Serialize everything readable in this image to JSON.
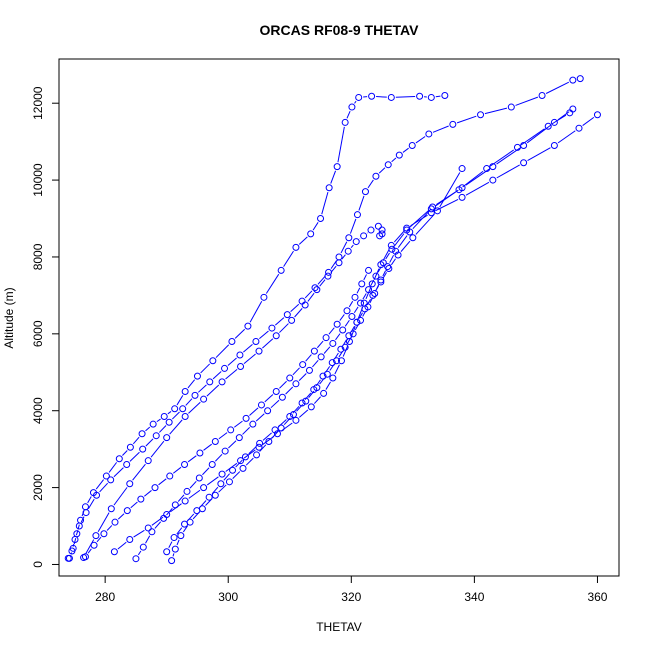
{
  "chart_data": {
    "type": "line",
    "title": "ORCAS RF08-9 THETAV",
    "xlabel": "THETAV",
    "ylabel": "Altitude (m)",
    "xlim": [
      272.5,
      363.5
    ],
    "ylim": [
      -300,
      13150
    ],
    "xticks": [
      280,
      300,
      320,
      340,
      360
    ],
    "yticks": [
      0,
      2000,
      4000,
      6000,
      8000,
      10000,
      12000
    ],
    "grid": false,
    "legend": "none",
    "marker": "open-circle",
    "color": "#0000ff",
    "series": [
      {
        "x": [
          274.2,
          274.8,
          275.4,
          276.0,
          276.8,
          278.1,
          280.2,
          282.3,
          284.1,
          286.0,
          287.8,
          289.6,
          291.3,
          293.0,
          295.0,
          297.5,
          300.6,
          303.2,
          305.8,
          308.6,
          311.0,
          313.4,
          315.0,
          316.4,
          317.7,
          319.0,
          320.1,
          321.2,
          323.3,
          326.5,
          331.1,
          333.0,
          335.2
        ],
        "y": [
          160,
          420,
          800,
          1150,
          1500,
          1870,
          2300,
          2750,
          3050,
          3400,
          3650,
          3850,
          4050,
          4500,
          4900,
          5300,
          5800,
          6200,
          6950,
          7650,
          8250,
          8600,
          9000,
          9800,
          10350,
          11500,
          11900,
          12150,
          12180,
          12150,
          12180,
          12150,
          12200
        ]
      },
      {
        "x": [
          274.0,
          274.6,
          275.1,
          275.8,
          276.9,
          278.6,
          280.9,
          283.5,
          286.1,
          288.3,
          290.4,
          292.6,
          294.6,
          297.0,
          299.4,
          301.9,
          304.5,
          307.1,
          309.6,
          312.0,
          314.1,
          316.3,
          318.0,
          319.6,
          321.0,
          322.3,
          324.0,
          326.0,
          327.8,
          329.9,
          332.6,
          336.5,
          341.0,
          346.0,
          351.0,
          356.0,
          357.2
        ],
        "y": [
          160,
          350,
          650,
          1000,
          1350,
          1800,
          2200,
          2600,
          3000,
          3350,
          3700,
          4050,
          4400,
          4750,
          5100,
          5450,
          5800,
          6150,
          6500,
          6850,
          7200,
          7600,
          8000,
          8500,
          9100,
          9700,
          10100,
          10400,
          10650,
          10900,
          11200,
          11450,
          11700,
          11900,
          12200,
          12600,
          12640
        ]
      },
      {
        "x": [
          285.0,
          286.2,
          287.6,
          289.5,
          291.4,
          293.3,
          295.3,
          297.4,
          299.5,
          301.8,
          304.0,
          306.4,
          308.8,
          311.0,
          313.2,
          315.1,
          317.0,
          318.6,
          320.1,
          321.5,
          322.8,
          324.0,
          325.2,
          326.6,
          329.0,
          333.2,
          338.0,
          343.0,
          348.0,
          353.0,
          356.0
        ],
        "y": [
          150,
          450,
          850,
          1200,
          1550,
          1900,
          2250,
          2600,
          2950,
          3300,
          3650,
          4000,
          4350,
          4700,
          5050,
          5400,
          5750,
          6100,
          6450,
          6800,
          7150,
          7500,
          7850,
          8200,
          8700,
          9300,
          9800,
          10350,
          10900,
          11500,
          11850
        ]
      },
      {
        "x": [
          290.8,
          291.4,
          292.3,
          293.8,
          295.8,
          297.9,
          300.2,
          302.4,
          304.6,
          306.6,
          308.6,
          310.6,
          312.6,
          314.4,
          316.1,
          317.6,
          319.0,
          320.3,
          321.5,
          322.7,
          323.8,
          324.8,
          325.9,
          327.2,
          329.5,
          333.0,
          337.5,
          342.0,
          347.0,
          352.0,
          355.5
        ],
        "y": [
          100,
          400,
          750,
          1100,
          1450,
          1800,
          2150,
          2500,
          2850,
          3200,
          3550,
          3900,
          4250,
          4600,
          4950,
          5300,
          5650,
          6000,
          6350,
          6700,
          7050,
          7400,
          7750,
          8150,
          8650,
          9250,
          9750,
          10300,
          10850,
          11400,
          11750
        ]
      },
      {
        "x": [
          281.5,
          284.0,
          287.0,
          290.0,
          293.0,
          296.0,
          299.0,
          302.0,
          305.0,
          308.0,
          311.0,
          313.5,
          315.5,
          317.0,
          318.4,
          319.7,
          320.9,
          322.1,
          323.4,
          324.8,
          326.5,
          329.0,
          333.0,
          338.0,
          343.0,
          348.0,
          353.0,
          357.0,
          360.0
        ],
        "y": [
          330,
          650,
          950,
          1300,
          1650,
          2000,
          2350,
          2700,
          3050,
          3400,
          3750,
          4100,
          4450,
          4850,
          5300,
          5800,
          6300,
          6800,
          7300,
          7800,
          8300,
          8750,
          9150,
          9550,
          10000,
          10450,
          10900,
          11350,
          11700
        ]
      },
      {
        "x": [
          290.0,
          291.2,
          292.9,
          294.9,
          296.9,
          298.8,
          300.7,
          302.8,
          305.1,
          307.6,
          310.0,
          312.0,
          313.9,
          315.4,
          316.9,
          318.3,
          319.6,
          320.9,
          322.2,
          323.5,
          324.8,
          326.1,
          327.6,
          330.0,
          334.0,
          338.0
        ],
        "y": [
          330,
          700,
          1050,
          1400,
          1750,
          2100,
          2450,
          2800,
          3150,
          3500,
          3850,
          4200,
          4550,
          4900,
          5250,
          5600,
          5950,
          6300,
          6650,
          7000,
          7350,
          7700,
          8050,
          8500,
          9200,
          10300
        ]
      },
      {
        "x": [
          276.5,
          278.5,
          281.0,
          284.0,
          287.0,
          290.0,
          293.0,
          296.0,
          299.0,
          302.0,
          305.0,
          307.8,
          310.3,
          312.5,
          314.4,
          316.2,
          318.0,
          319.5,
          320.8,
          322.0,
          323.2,
          324.4,
          325.0,
          325.0,
          324.6
        ],
        "y": [
          180,
          750,
          1450,
          2100,
          2700,
          3300,
          3850,
          4300,
          4750,
          5150,
          5550,
          5950,
          6350,
          6750,
          7150,
          7500,
          7850,
          8150,
          8400,
          8550,
          8700,
          8800,
          8700,
          8600,
          8550
        ]
      },
      {
        "x": [
          276.8,
          278.2,
          279.8,
          281.6,
          283.6,
          285.8,
          288.1,
          290.5,
          292.9,
          295.4,
          297.9,
          300.4,
          302.9,
          305.4,
          307.8,
          310.0,
          312.1,
          314.0,
          315.9,
          317.7,
          319.3,
          320.6,
          321.7,
          322.8
        ],
        "y": [
          200,
          500,
          800,
          1100,
          1400,
          1700,
          2000,
          2300,
          2600,
          2900,
          3200,
          3500,
          3800,
          4150,
          4500,
          4850,
          5200,
          5550,
          5900,
          6250,
          6600,
          6950,
          7300,
          7650
        ]
      }
    ]
  }
}
